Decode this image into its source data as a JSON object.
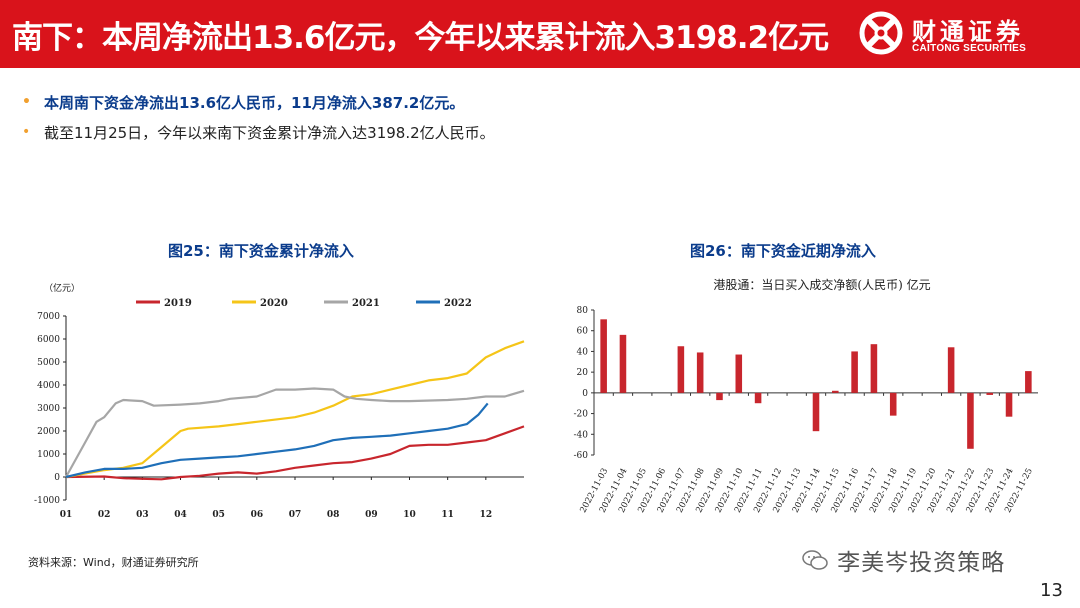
{
  "header": {
    "title": "南下：本周净流出13.6亿元，今年以来累计流入3198.2亿元",
    "logo_cn": "财通证券",
    "logo_en": "CAITONG SECURITIES"
  },
  "bullets": [
    {
      "text": "本周南下资金净流出13.6亿人民币，11月净流入387.2亿元。",
      "bold": true
    },
    {
      "text": "截至11月25日，今年以来南下资金累计净流入达3198.2亿人民币。",
      "bold": false
    }
  ],
  "figures": {
    "fig25_title": "图25：南下资金累计净流入",
    "fig26_title": "图26：南下资金近期净流入"
  },
  "source": "资料来源：Wind，财通证券研究所",
  "watermark": "李美岑投资策略",
  "page_number": "13",
  "colors": {
    "brand_red": "#d9131b",
    "title_blue": "#0b3c8c",
    "bullet_orange": "#f1a02f"
  },
  "chart_data": [
    {
      "type": "line",
      "title": "图25：南下资金累计净流入",
      "unit_label": "（亿元）",
      "x_ticks": [
        "01",
        "02",
        "03",
        "04",
        "05",
        "06",
        "07",
        "08",
        "09",
        "10",
        "11",
        "12"
      ],
      "y_ticks": [
        -1000,
        0,
        1000,
        2000,
        3000,
        4000,
        5000,
        6000,
        7000
      ],
      "ylim": [
        -1000,
        7000
      ],
      "xlim": [
        0,
        12
      ],
      "series": [
        {
          "name": "2019",
          "color": "#c8262d",
          "x": [
            0,
            1,
            1.5,
            2,
            2.5,
            3,
            3.5,
            4,
            4.5,
            5,
            5.5,
            6,
            6.5,
            7,
            7.5,
            8,
            8.5,
            9,
            9.5,
            10,
            10.5,
            11,
            11.5,
            12
          ],
          "y": [
            0,
            20,
            -50,
            -80,
            -100,
            0,
            50,
            150,
            200,
            150,
            250,
            400,
            500,
            600,
            650,
            800,
            1000,
            1350,
            1400,
            1400,
            1500,
            1600,
            1900,
            2200
          ]
        },
        {
          "name": "2020",
          "color": "#f5c518",
          "x": [
            0,
            1,
            1.5,
            2,
            2.5,
            3,
            3.2,
            4,
            4.5,
            5,
            6,
            6.5,
            7,
            7.5,
            8,
            8.5,
            9,
            9.5,
            10,
            10.5,
            11,
            11.5,
            12
          ],
          "y": [
            0,
            300,
            400,
            600,
            1300,
            2000,
            2100,
            2200,
            2300,
            2400,
            2600,
            2800,
            3100,
            3500,
            3600,
            3800,
            4000,
            4200,
            4300,
            4500,
            5200,
            5600,
            5900
          ]
        },
        {
          "name": "2021",
          "color": "#a6a6a6",
          "x": [
            0,
            0.5,
            0.8,
            1,
            1.3,
            1.5,
            2,
            2.3,
            3,
            3.5,
            4,
            4.3,
            5,
            5.5,
            6,
            6.5,
            7,
            7.3,
            7.6,
            8,
            8.5,
            9,
            10,
            10.5,
            11,
            11.5,
            12
          ],
          "y": [
            0,
            1500,
            2400,
            2600,
            3200,
            3350,
            3300,
            3100,
            3150,
            3200,
            3300,
            3400,
            3500,
            3800,
            3800,
            3850,
            3800,
            3500,
            3400,
            3350,
            3300,
            3300,
            3350,
            3400,
            3500,
            3500,
            3750
          ]
        },
        {
          "name": "2022",
          "color": "#1f6fb8",
          "x": [
            0,
            0.5,
            1,
            1.5,
            2,
            2.5,
            3,
            3.5,
            4,
            4.5,
            5,
            5.5,
            6,
            6.5,
            7,
            7.5,
            8,
            8.5,
            9,
            9.5,
            10,
            10.5,
            10.8,
            11.05
          ],
          "y": [
            0,
            200,
            350,
            350,
            400,
            600,
            750,
            800,
            850,
            900,
            1000,
            1100,
            1200,
            1350,
            1600,
            1700,
            1750,
            1800,
            1900,
            2000,
            2100,
            2300,
            2700,
            3198.2
          ]
        }
      ]
    },
    {
      "type": "bar",
      "title": "图26：南下资金近期净流入",
      "subtitle": "港股通：当日买入成交净额(人民币) 亿元",
      "color": "#c8262d",
      "ylim": [
        -60,
        80
      ],
      "y_ticks": [
        -60,
        -40,
        -20,
        0,
        20,
        40,
        60,
        80
      ],
      "categories": [
        "2022-11-03",
        "2022-11-04",
        "2022-11-05",
        "2022-11-06",
        "2022-11-07",
        "2022-11-08",
        "2022-11-09",
        "2022-11-10",
        "2022-11-11",
        "2022-11-12",
        "2022-11-13",
        "2022-11-14",
        "2022-11-15",
        "2022-11-16",
        "2022-11-17",
        "2022-11-18",
        "2022-11-19",
        "2022-11-20",
        "2022-11-21",
        "2022-11-22",
        "2022-11-23",
        "2022-11-24",
        "2022-11-25"
      ],
      "values": [
        71,
        56,
        0,
        0,
        45,
        39,
        -7,
        37,
        -10,
        0,
        0,
        -37,
        2,
        40,
        47,
        -22,
        0,
        0,
        44,
        -54,
        -2,
        -23,
        21
      ]
    }
  ]
}
